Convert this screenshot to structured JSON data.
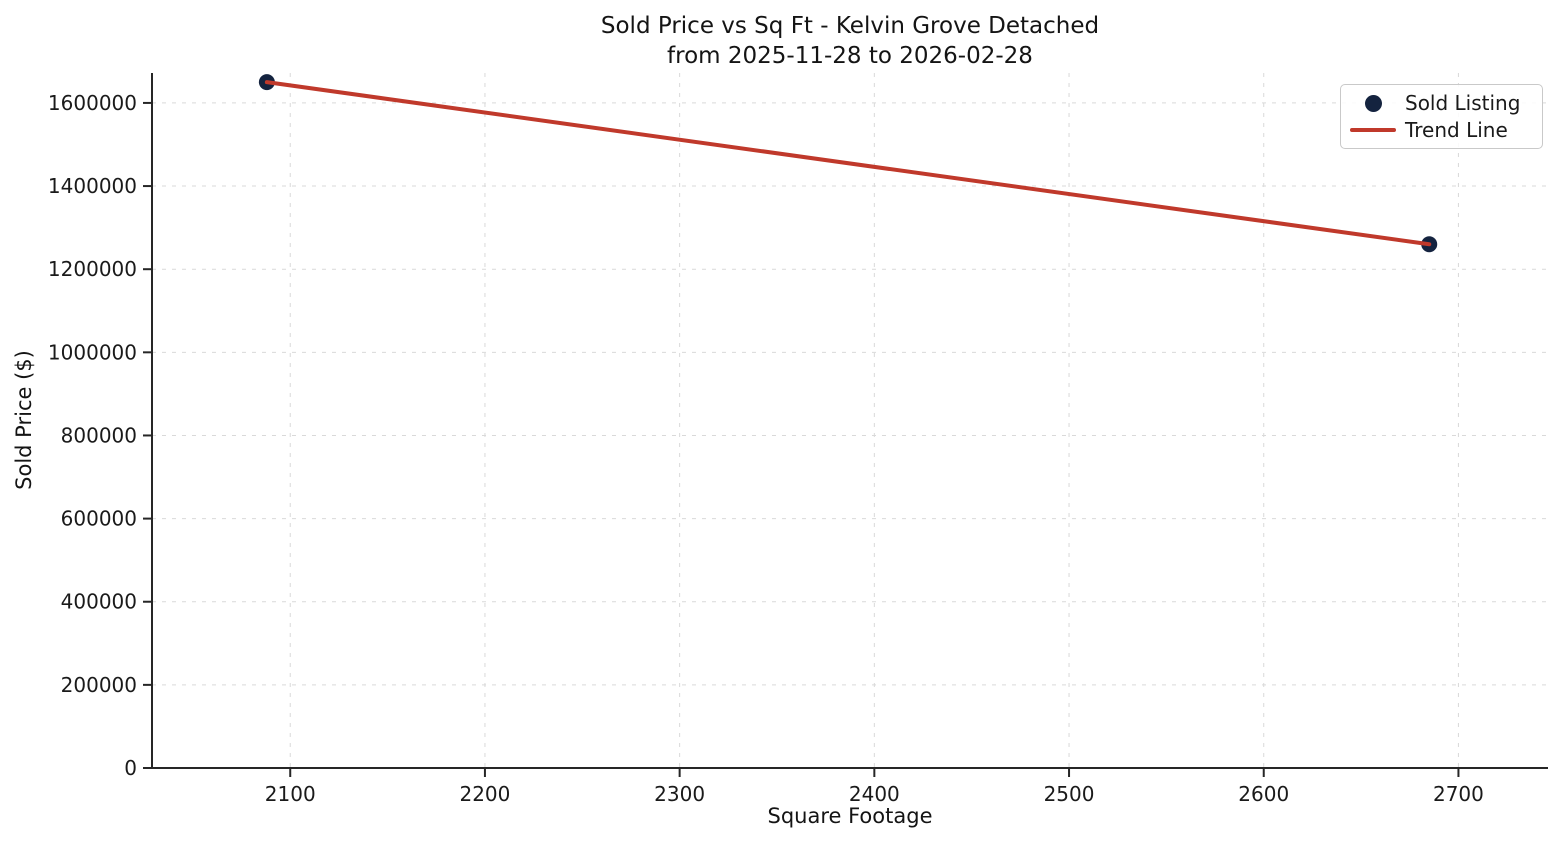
{
  "chart_data": {
    "type": "scatter",
    "title": "Sold Price vs Sq Ft - Kelvin Grove Detached",
    "subtitle": "from 2025-11-28 to 2026-02-28",
    "xlabel": "Square Footage",
    "ylabel": "Sold Price ($)",
    "xlim": [
      2029,
      2746
    ],
    "ylim": [
      0,
      1672000
    ],
    "x_ticks": [
      2100,
      2200,
      2300,
      2400,
      2500,
      2600,
      2700
    ],
    "y_ticks": [
      0,
      200000,
      400000,
      600000,
      800000,
      1000000,
      1200000,
      1400000,
      1600000
    ],
    "grid": true,
    "grid_style": "dashed",
    "legend_position": "upper right",
    "series": [
      {
        "name": "Sold Listing",
        "type": "scatter",
        "color": "#14233f",
        "points": [
          {
            "x": 2088,
            "y": 1650000
          },
          {
            "x": 2685,
            "y": 1260000
          }
        ]
      },
      {
        "name": "Trend Line",
        "type": "line",
        "color": "#c0392b",
        "points": [
          {
            "x": 2088,
            "y": 1650000
          },
          {
            "x": 2685,
            "y": 1260000
          }
        ]
      }
    ]
  },
  "colors": {
    "background": "#ffffff",
    "spine": "#262626",
    "grid": "#d9d9d9",
    "text": "#1a1a1a",
    "scatter": "#14233f",
    "trend": "#c0392b"
  }
}
